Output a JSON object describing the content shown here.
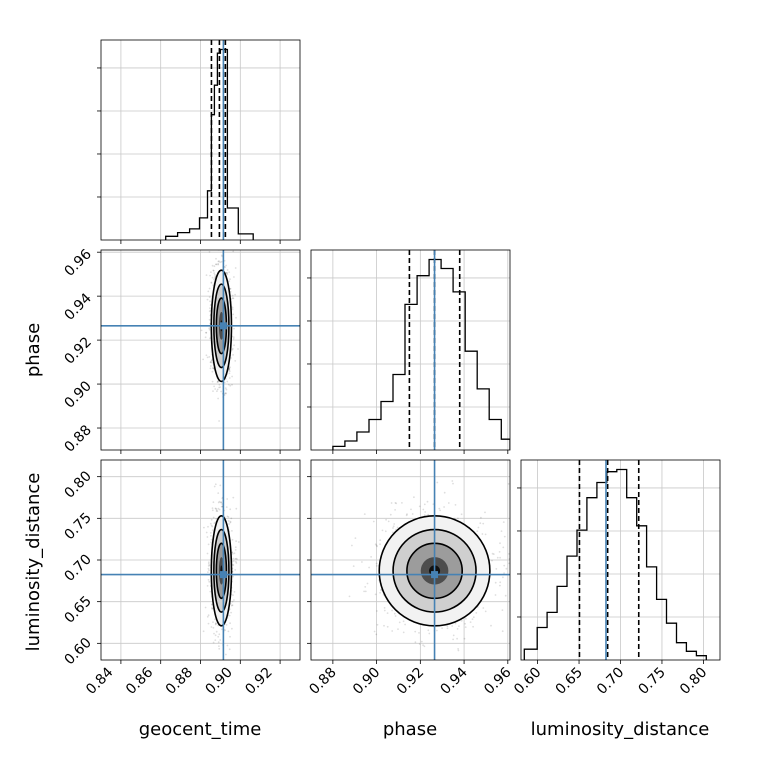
{
  "chart_data": {
    "type": "corner",
    "parameters": [
      {
        "name": "geocent_time",
        "label": "geocent_time",
        "range": [
          0.83,
          0.93
        ],
        "ticks": [
          "0.84",
          "0.86",
          "0.88",
          "0.90",
          "0.92"
        ],
        "truth": 0.8915,
        "quantiles": [
          0.8855,
          0.8895,
          0.8925
        ]
      },
      {
        "name": "phase",
        "label": "phase",
        "range": [
          0.87,
          0.961
        ],
        "ticks": [
          "0.88",
          "0.90",
          "0.92",
          "0.94",
          "0.96"
        ],
        "truth": 0.9265,
        "quantiles": [
          0.915,
          0.9265,
          0.938
        ]
      },
      {
        "name": "luminosity_distance",
        "label": "luminosity_distance",
        "range": [
          0.58,
          0.82
        ],
        "ticks": [
          "0.60",
          "0.65",
          "0.70",
          "0.75",
          "0.80"
        ],
        "truth": 0.6825,
        "quantiles": [
          0.6505,
          0.6845,
          0.722
        ]
      }
    ],
    "histograms": [
      {
        "param": "geocent_time",
        "bin_edges": [
          0.8625,
          0.8685,
          0.8745,
          0.8795,
          0.8835,
          0.8855,
          0.887,
          0.8885,
          0.89,
          0.8915,
          0.8935,
          0.899,
          0.9065
        ],
        "counts": [
          0.03,
          0.06,
          0.09,
          0.18,
          0.4,
          1.02,
          1.26,
          1.52,
          1.55,
          1.55,
          0.26,
          0.05
        ]
      },
      {
        "param": "phase",
        "bin_edges": [
          0.88,
          0.8855,
          0.891,
          0.8965,
          0.902,
          0.9075,
          0.913,
          0.9185,
          0.924,
          0.9295,
          0.935,
          0.9405,
          0.946,
          0.9515,
          0.957,
          0.961
        ],
        "counts": [
          0.02,
          0.05,
          0.1,
          0.17,
          0.27,
          0.42,
          0.81,
          0.97,
          1.06,
          1.01,
          0.88,
          0.55,
          0.34,
          0.17,
          0.06
        ]
      },
      {
        "param": "luminosity_distance",
        "bin_edges": [
          0.584,
          0.5995,
          0.6115,
          0.6235,
          0.6355,
          0.6475,
          0.6595,
          0.6715,
          0.6835,
          0.6955,
          0.7075,
          0.7195,
          0.7315,
          0.7435,
          0.7555,
          0.7675,
          0.7795,
          0.7915,
          0.8035
        ],
        "counts": [
          0.05,
          0.15,
          0.22,
          0.34,
          0.48,
          0.6,
          0.75,
          0.82,
          0.87,
          0.88,
          0.75,
          0.62,
          0.43,
          0.28,
          0.17,
          0.08,
          0.04,
          0.02
        ]
      }
    ],
    "contours": [
      {
        "x": "geocent_time",
        "y": "phase",
        "center": [
          0.8905,
          0.9265
        ],
        "sigma": [
          0.0023,
          0.0115
        ]
      },
      {
        "x": "geocent_time",
        "y": "luminosity_distance",
        "center": [
          0.8905,
          0.687
        ],
        "sigma": [
          0.0023,
          0.03
        ]
      },
      {
        "x": "phase",
        "y": "luminosity_distance",
        "center": [
          0.9265,
          0.687
        ],
        "sigma": [
          0.0115,
          0.03
        ]
      }
    ],
    "grid": true,
    "colors": {
      "truth": "#4682b4",
      "line": "#000000",
      "grid": "#c8c8c8",
      "sample": "#000000"
    }
  }
}
